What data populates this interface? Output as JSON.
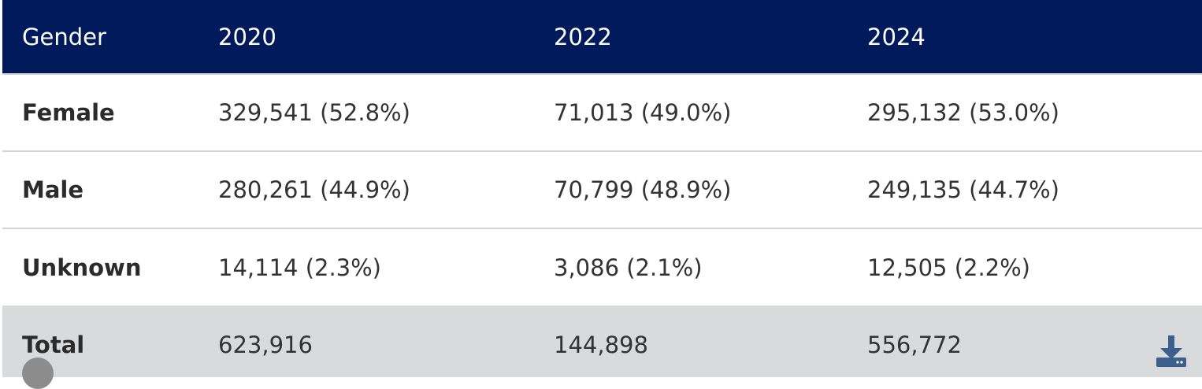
{
  "table": {
    "headers": [
      "Gender",
      "2020",
      "2022",
      "2024"
    ],
    "rows": [
      {
        "label": "Female",
        "v2020": "329,541 (52.8%)",
        "v2022": "71,013 (49.0%)",
        "v2024": "295,132 (53.0%)"
      },
      {
        "label": "Male",
        "v2020": "280,261 (44.9%)",
        "v2022": "70,799 (48.9%)",
        "v2024": "249,135 (44.7%)"
      },
      {
        "label": "Unknown",
        "v2020": "14,114 (2.3%)",
        "v2022": "3,086 (2.1%)",
        "v2024": "12,505 (2.2%)"
      }
    ],
    "total": {
      "label": "Total",
      "v2020": "623,916",
      "v2022": "144,898",
      "v2024": "556,772"
    }
  },
  "colors": {
    "header_bg": "#001a5c",
    "total_bg": "#d9dadc",
    "icon_color": "#3d5f8c"
  },
  "icons": {
    "download": "download-icon"
  }
}
